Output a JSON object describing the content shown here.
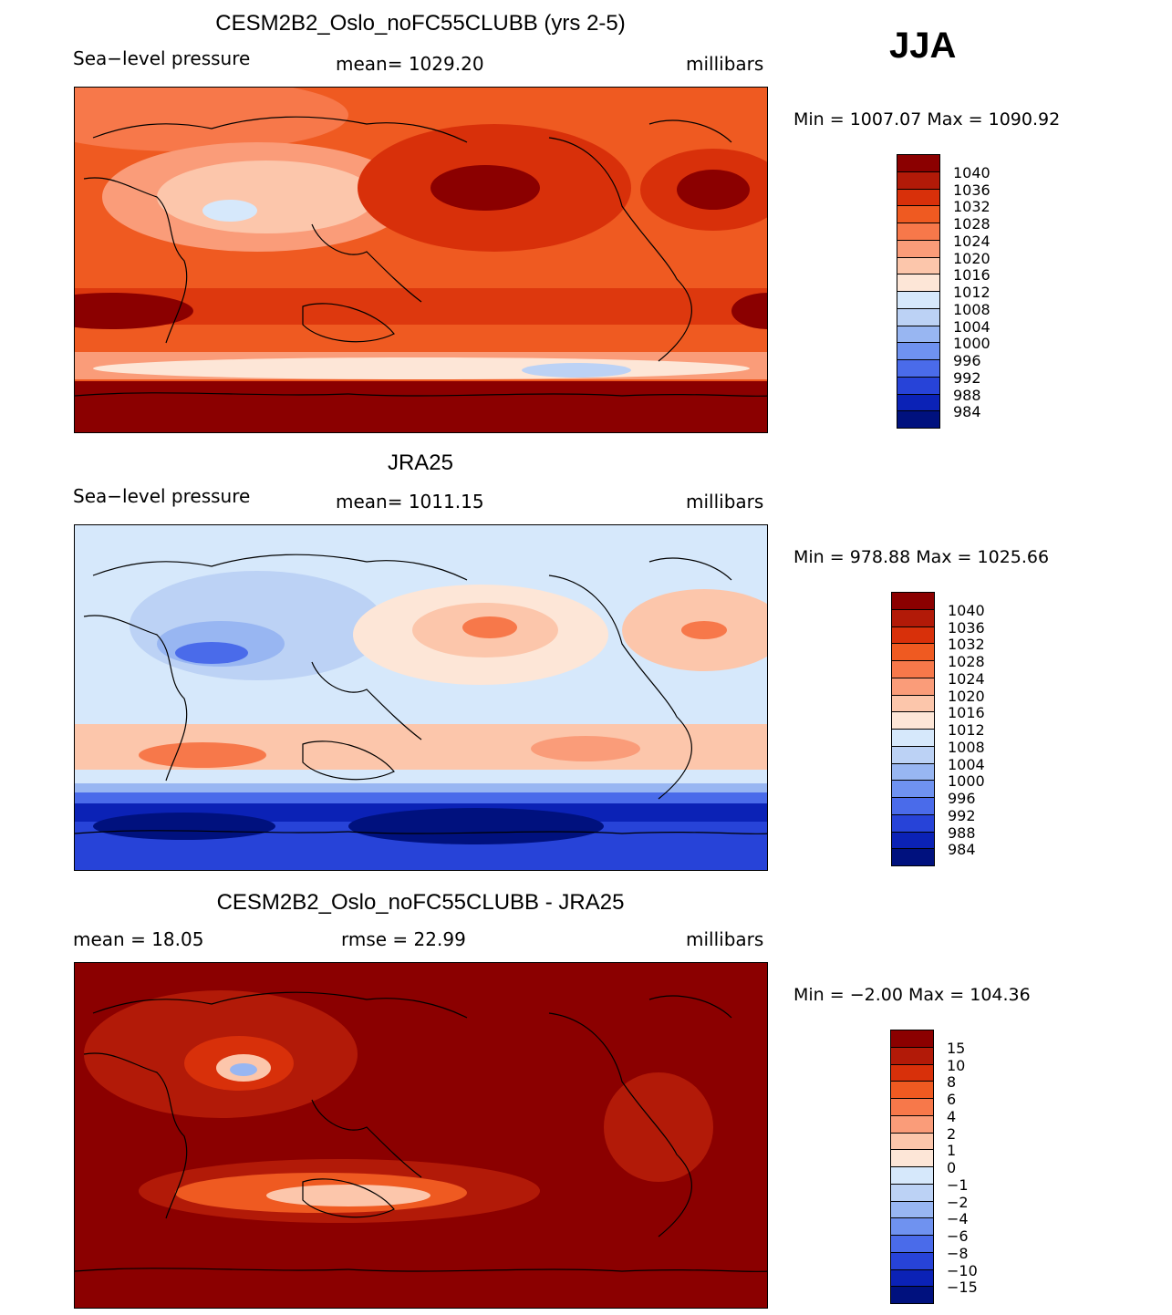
{
  "season": "JJA",
  "panels": [
    {
      "id": "model",
      "title": "CESM2B2_Oslo_noFC55CLUBB (yrs 2-5)",
      "left_label": "Sea−level pressure",
      "center_label": "mean=  1029.20",
      "units": "millibars",
      "minmax": "Min  =  1007.07  Max  =  1090.92",
      "colorbar": [
        "1040",
        "1036",
        "1032",
        "1028",
        "1024",
        "1020",
        "1016",
        "1012",
        "1008",
        "1004",
        "1000",
        "996",
        "992",
        "988",
        "984"
      ],
      "colors": [
        "#8b0000",
        "#b21a08",
        "#d8300a",
        "#ef5a21",
        "#f7784a",
        "#fa9c79",
        "#fcc6ab",
        "#fde6d7",
        "#d6e8fb",
        "#bcd2f5",
        "#98b6f2",
        "#6f92f0",
        "#4a6bea",
        "#2743d8",
        "#0b22b6",
        "#00117e"
      ]
    },
    {
      "id": "obs",
      "title": "JRA25",
      "left_label": "Sea−level pressure",
      "center_label": "mean=  1011.15",
      "units": "millibars",
      "minmax": "Min  =  978.88  Max  =  1025.66",
      "colorbar": [
        "1040",
        "1036",
        "1032",
        "1028",
        "1024",
        "1020",
        "1016",
        "1012",
        "1008",
        "1004",
        "1000",
        "996",
        "992",
        "988",
        "984"
      ],
      "colors": [
        "#8b0000",
        "#b21a08",
        "#d8300a",
        "#ef5a21",
        "#f7784a",
        "#fa9c79",
        "#fcc6ab",
        "#fde6d7",
        "#d6e8fb",
        "#bcd2f5",
        "#98b6f2",
        "#6f92f0",
        "#4a6bea",
        "#2743d8",
        "#0b22b6",
        "#00117e"
      ]
    },
    {
      "id": "diff",
      "title": "CESM2B2_Oslo_noFC55CLUBB - JRA25",
      "left_label": "mean  =    18.05",
      "center_label": "rmse  =    22.99",
      "units": "millibars",
      "minmax": "Min  =   −2.00  Max  =  104.36",
      "colorbar": [
        "15",
        "10",
        "8",
        "6",
        "4",
        "2",
        "1",
        "0",
        "−1",
        "−2",
        "−4",
        "−6",
        "−8",
        "−10",
        "−15"
      ],
      "colors": [
        "#8b0000",
        "#b21a08",
        "#d8300a",
        "#ef5a21",
        "#f7784a",
        "#fa9c79",
        "#fcc6ab",
        "#fde6d7",
        "#d6e8fb",
        "#bcd2f5",
        "#98b6f2",
        "#6f92f0",
        "#4a6bea",
        "#2743d8",
        "#0b22b6",
        "#00117e"
      ]
    }
  ],
  "chart_data": [
    {
      "type": "heatmap",
      "title": "CESM2B2_Oslo_noFC55CLUBB (yrs 2-5)",
      "variable": "Sea-level pressure",
      "units": "millibars",
      "mean": 1029.2,
      "min": 1007.07,
      "max": 1090.92,
      "contour_levels": [
        984,
        988,
        992,
        996,
        1000,
        1004,
        1008,
        1012,
        1016,
        1020,
        1024,
        1028,
        1032,
        1036,
        1040
      ],
      "season": "JJA"
    },
    {
      "type": "heatmap",
      "title": "JRA25",
      "variable": "Sea-level pressure",
      "units": "millibars",
      "mean": 1011.15,
      "min": 978.88,
      "max": 1025.66,
      "contour_levels": [
        984,
        988,
        992,
        996,
        1000,
        1004,
        1008,
        1012,
        1016,
        1020,
        1024,
        1028,
        1032,
        1036,
        1040
      ],
      "season": "JJA"
    },
    {
      "type": "heatmap",
      "title": "CESM2B2_Oslo_noFC55CLUBB - JRA25",
      "units": "millibars",
      "mean": 18.05,
      "rmse": 22.99,
      "min": -2.0,
      "max": 104.36,
      "contour_levels": [
        -15,
        -10,
        -8,
        -6,
        -4,
        -2,
        -1,
        0,
        1,
        2,
        4,
        6,
        8,
        10,
        15
      ],
      "season": "JJA"
    }
  ]
}
